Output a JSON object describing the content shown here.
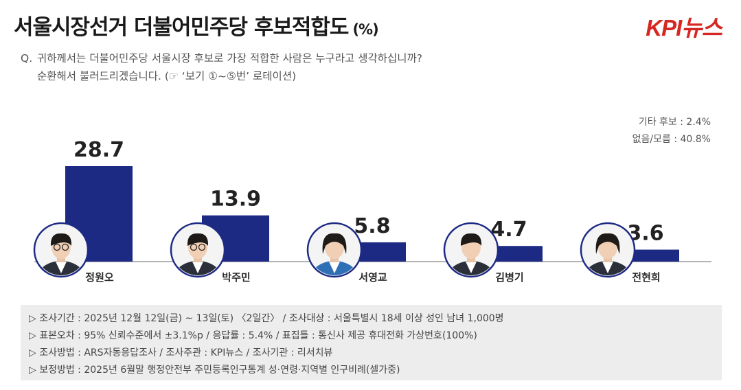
{
  "header": {
    "title": "서울시장선거 더불어민주당 후보적합도",
    "unit": "(%)",
    "logo_text": "KPI뉴스"
  },
  "question": {
    "label": "Q.",
    "line1": "귀하께서는 더불어민주당 서울시장 후보로 가장 적합한 사람은 누구라고 생각하십니까?",
    "line2": "순환해서 불러드리겠습니다. (☞ ‘보기 ①~⑤번’ 로테이션)"
  },
  "side_notes": {
    "other": "기타 후보 : 2.4%",
    "none": "없음/모름 : 40.8%"
  },
  "chart_data": {
    "type": "bar",
    "categories": [
      "정원오",
      "박주민",
      "서영교",
      "김병기",
      "전현희"
    ],
    "values": [
      28.7,
      13.9,
      5.8,
      4.7,
      3.6
    ],
    "value_labels": [
      "28.7",
      "13.9",
      "5.8",
      "4.7",
      "3.6"
    ],
    "ylim": [
      0,
      30
    ],
    "grid": false,
    "bar_color": "#1c2a84",
    "axis_color": "#9a9a9a"
  },
  "methodology": [
    "▷ 조사기간 : 2025년 12월 12일(금) ~ 13일(토) 〈2일간〉 / 조사대상 : 서울특별시 18세 이상 성인 남녀 1,000명",
    "▷ 표본오차 : 95% 신뢰수준에서 ±3.1%p / 응답률 : 5.4% / 표집틀 : 통신사 제공 휴대전화 가상번호(100%)",
    "▷ 조사방법 : ARS자동응답조사 / 조사주관 : KPI뉴스 / 조사기관 : 리서치뷰",
    "▷ 보정방법 : 2025년 6월말 행정안전부 주민등록인구통계 성·연령·지역별 인구비례(셀가중)"
  ]
}
